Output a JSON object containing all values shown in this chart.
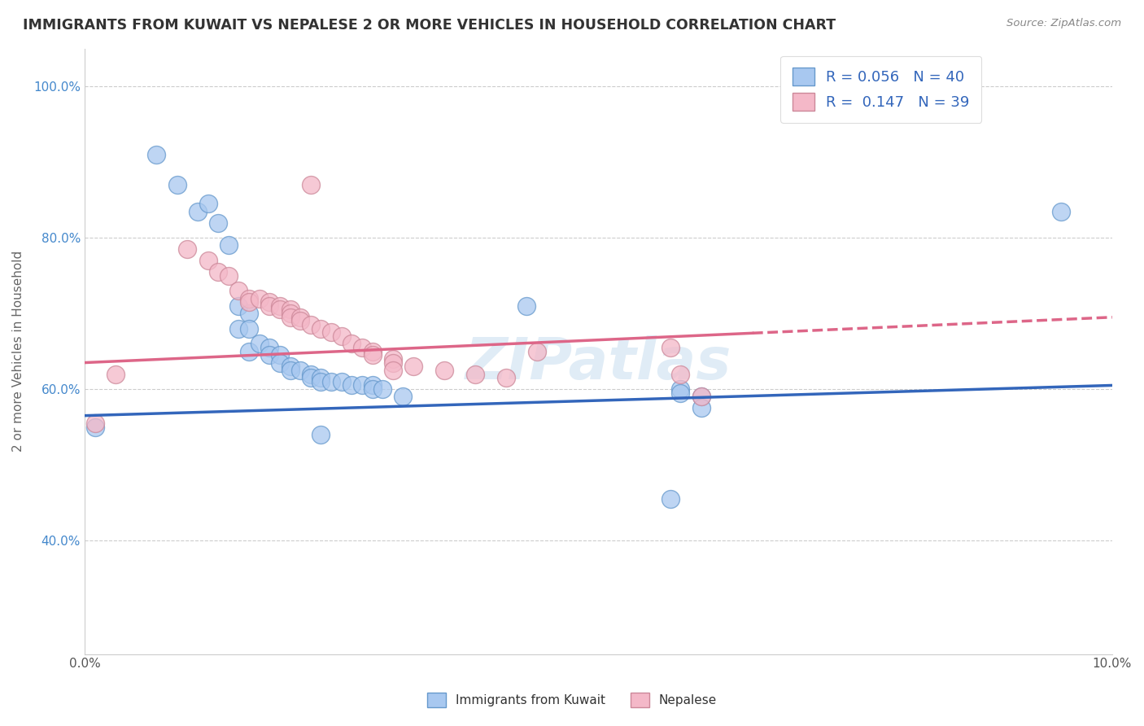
{
  "title": "IMMIGRANTS FROM KUWAIT VS NEPALESE 2 OR MORE VEHICLES IN HOUSEHOLD CORRELATION CHART",
  "source": "Source: ZipAtlas.com",
  "ylabel": "2 or more Vehicles in Household",
  "xlim": [
    0.0,
    0.1
  ],
  "ylim": [
    0.25,
    1.05
  ],
  "yticks": [
    0.4,
    0.6,
    0.8,
    1.0
  ],
  "yticklabels": [
    "40.0%",
    "60.0%",
    "80.0%",
    "100.0%"
  ],
  "xtick_left": "0.0%",
  "xtick_right": "10.0%",
  "watermark": "ZIPatlas",
  "kuwait_color": "#a8c8f0",
  "nepalese_color": "#f4b8c8",
  "kuwait_edge": "#6699cc",
  "nepalese_edge": "#cc8899",
  "line_kuwait_color": "#3366bb",
  "line_nepalese_color": "#dd6688",
  "background_color": "#ffffff",
  "grid_color": "#cccccc",
  "kuwait_x": [
    0.007,
    0.009,
    0.011,
    0.012,
    0.013,
    0.014,
    0.015,
    0.015,
    0.016,
    0.016,
    0.016,
    0.017,
    0.018,
    0.018,
    0.019,
    0.019,
    0.02,
    0.02,
    0.021,
    0.022,
    0.022,
    0.023,
    0.023,
    0.024,
    0.025,
    0.026,
    0.027,
    0.028,
    0.028,
    0.029,
    0.031,
    0.043,
    0.058,
    0.058,
    0.06,
    0.06,
    0.001,
    0.095,
    0.057,
    0.023
  ],
  "kuwait_y": [
    0.91,
    0.87,
    0.835,
    0.845,
    0.82,
    0.79,
    0.71,
    0.68,
    0.7,
    0.68,
    0.65,
    0.66,
    0.655,
    0.645,
    0.645,
    0.635,
    0.63,
    0.625,
    0.625,
    0.62,
    0.615,
    0.615,
    0.61,
    0.61,
    0.61,
    0.605,
    0.605,
    0.605,
    0.6,
    0.6,
    0.59,
    0.71,
    0.6,
    0.595,
    0.59,
    0.575,
    0.55,
    0.835,
    0.455,
    0.54
  ],
  "nepalese_x": [
    0.003,
    0.01,
    0.012,
    0.013,
    0.014,
    0.015,
    0.016,
    0.016,
    0.017,
    0.018,
    0.018,
    0.019,
    0.019,
    0.02,
    0.02,
    0.02,
    0.021,
    0.021,
    0.022,
    0.023,
    0.024,
    0.025,
    0.026,
    0.027,
    0.028,
    0.028,
    0.03,
    0.03,
    0.03,
    0.032,
    0.035,
    0.038,
    0.041,
    0.044,
    0.057,
    0.058,
    0.06,
    0.001,
    0.022
  ],
  "nepalese_y": [
    0.62,
    0.785,
    0.77,
    0.755,
    0.75,
    0.73,
    0.72,
    0.715,
    0.72,
    0.715,
    0.71,
    0.71,
    0.705,
    0.705,
    0.7,
    0.695,
    0.695,
    0.69,
    0.685,
    0.68,
    0.675,
    0.67,
    0.66,
    0.655,
    0.65,
    0.645,
    0.64,
    0.635,
    0.625,
    0.63,
    0.625,
    0.62,
    0.615,
    0.65,
    0.655,
    0.62,
    0.59,
    0.555,
    0.87
  ],
  "kuwait_line_x0": 0.0,
  "kuwait_line_y0": 0.565,
  "kuwait_line_x1": 0.1,
  "kuwait_line_y1": 0.605,
  "nepalese_line_x0": 0.0,
  "nepalese_line_y0": 0.635,
  "nepalese_line_x1": 0.1,
  "nepalese_line_y1": 0.695
}
